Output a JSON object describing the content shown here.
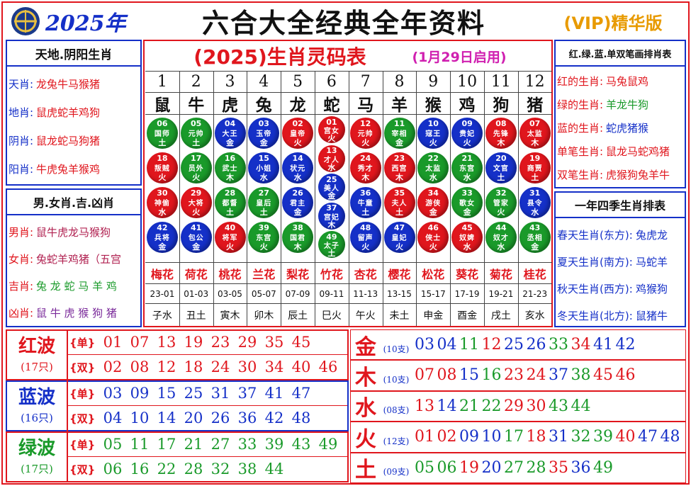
{
  "header": {
    "year": "2025年",
    "title": "六合大全经典全年资料",
    "badge": "(VIP)精华版"
  },
  "left_panels": [
    {
      "title": "天地.阴阳生肖",
      "rows": [
        {
          "label": "天肖:",
          "value": "龙兔牛马猴猪"
        },
        {
          "label": "地肖:",
          "value": "鼠虎蛇羊鸡狗"
        },
        {
          "label": "阴肖:",
          "value": "鼠龙蛇马狗猪"
        },
        {
          "label": "阳肖:",
          "value": "牛虎兔羊猴鸡"
        }
      ]
    },
    {
      "title": "男.女肖.吉.凶肖",
      "rows": [
        {
          "label": "男肖:",
          "value": "鼠牛虎龙马猴狗"
        },
        {
          "label": "女肖:",
          "value": "兔蛇羊鸡猪（五宫"
        },
        {
          "label": "吉肖:",
          "value": "兔 龙 蛇 马 羊 鸡"
        },
        {
          "label": "凶肖:",
          "value": "鼠 牛 虎 猴 狗 猪"
        }
      ]
    }
  ],
  "table": {
    "title": "(2025)生肖灵码表",
    "subtitle": "(1月29日启用)",
    "columns": [
      {
        "index": "1",
        "zodiac": "鼠",
        "balls": [
          {
            "number": "06",
            "name": "国师",
            "element": "土"
          },
          {
            "number": "18",
            "name": "叛贼",
            "element": "火"
          },
          {
            "number": "30",
            "name": "神偷",
            "element": "水"
          },
          {
            "number": "42",
            "name": "兵将",
            "element": "金"
          }
        ],
        "flower": "梅花",
        "hours": "23-01",
        "branch": "子水"
      },
      {
        "index": "2",
        "zodiac": "牛",
        "balls": [
          {
            "number": "05",
            "name": "元帅",
            "element": "土"
          },
          {
            "number": "17",
            "name": "员外",
            "element": "火"
          },
          {
            "number": "29",
            "name": "大将",
            "element": "火"
          },
          {
            "number": "41",
            "name": "包公",
            "element": "金"
          }
        ],
        "flower": "荷花",
        "hours": "01-03",
        "branch": "丑土"
      },
      {
        "index": "3",
        "zodiac": "虎",
        "balls": [
          {
            "number": "04",
            "name": "大王",
            "element": "金"
          },
          {
            "number": "16",
            "name": "武士",
            "element": "木"
          },
          {
            "number": "28",
            "name": "都督",
            "element": "土"
          },
          {
            "number": "40",
            "name": "将军",
            "element": "火"
          }
        ],
        "flower": "桃花",
        "hours": "03-05",
        "branch": "寅木"
      },
      {
        "index": "4",
        "zodiac": "兔",
        "balls": [
          {
            "number": "03",
            "name": "玉帝",
            "element": "金"
          },
          {
            "number": "15",
            "name": "小姐",
            "element": "水"
          },
          {
            "number": "27",
            "name": "皇后",
            "element": "土"
          },
          {
            "number": "39",
            "name": "东宫",
            "element": "火"
          }
        ],
        "flower": "兰花",
        "hours": "05-07",
        "branch": "卯木"
      },
      {
        "index": "5",
        "zodiac": "龙",
        "balls": [
          {
            "number": "02",
            "name": "皇帝",
            "element": "火"
          },
          {
            "number": "14",
            "name": "状元",
            "element": "水"
          },
          {
            "number": "26",
            "name": "君主",
            "element": "金"
          },
          {
            "number": "38",
            "name": "国君",
            "element": "木"
          }
        ],
        "flower": "梨花",
        "hours": "07-09",
        "branch": "辰土"
      },
      {
        "index": "6",
        "zodiac": "蛇",
        "balls": [
          {
            "number": "01",
            "name": "宫女",
            "element": "火"
          },
          {
            "number": "13",
            "name": "才人",
            "element": "水"
          },
          {
            "number": "25",
            "name": "美人",
            "element": "金"
          },
          {
            "number": "37",
            "name": "宫妃",
            "element": "木"
          },
          {
            "number": "49",
            "name": "太子",
            "element": "土"
          }
        ],
        "flower": "竹花",
        "hours": "09-11",
        "branch": "巳火"
      },
      {
        "index": "7",
        "zodiac": "马",
        "balls": [
          {
            "number": "12",
            "name": "元帅",
            "element": "火"
          },
          {
            "number": "24",
            "name": "秀才",
            "element": "木"
          },
          {
            "number": "36",
            "name": "牛童",
            "element": "土"
          },
          {
            "number": "48",
            "name": "留声",
            "element": "火"
          }
        ],
        "flower": "杏花",
        "hours": "11-13",
        "branch": "午火"
      },
      {
        "index": "8",
        "zodiac": "羊",
        "balls": [
          {
            "number": "11",
            "name": "宰相",
            "element": "金"
          },
          {
            "number": "23",
            "name": "西宫",
            "element": "木"
          },
          {
            "number": "35",
            "name": "夫人",
            "element": "土"
          },
          {
            "number": "47",
            "name": "皇妃",
            "element": "火"
          }
        ],
        "flower": "樱花",
        "hours": "13-15",
        "branch": "未土"
      },
      {
        "index": "9",
        "zodiac": "猴",
        "balls": [
          {
            "number": "10",
            "name": "寇王",
            "element": "火"
          },
          {
            "number": "22",
            "name": "太监",
            "element": "水"
          },
          {
            "number": "34",
            "name": "游侠",
            "element": "金"
          },
          {
            "number": "46",
            "name": "侠士",
            "element": "火"
          }
        ],
        "flower": "松花",
        "hours": "15-17",
        "branch": "申金"
      },
      {
        "index": "10",
        "zodiac": "鸡",
        "balls": [
          {
            "number": "09",
            "name": "贵妃",
            "element": "火"
          },
          {
            "number": "21",
            "name": "东宫",
            "element": "水"
          },
          {
            "number": "33",
            "name": "歌女",
            "element": "金"
          },
          {
            "number": "45",
            "name": "奴婢",
            "element": "水"
          }
        ],
        "flower": "葵花",
        "hours": "17-19",
        "branch": "酉金"
      },
      {
        "index": "11",
        "zodiac": "狗",
        "balls": [
          {
            "number": "08",
            "name": "先锋",
            "element": "木"
          },
          {
            "number": "20",
            "name": "文官",
            "element": "土"
          },
          {
            "number": "32",
            "name": "管家",
            "element": "火"
          },
          {
            "number": "44",
            "name": "奴才",
            "element": "水"
          }
        ],
        "flower": "菊花",
        "hours": "19-21",
        "branch": "戌土"
      },
      {
        "index": "12",
        "zodiac": "猪",
        "balls": [
          {
            "number": "07",
            "name": "太监",
            "element": "木"
          },
          {
            "number": "19",
            "name": "商贾",
            "element": "土"
          },
          {
            "number": "31",
            "name": "县令",
            "element": "水"
          },
          {
            "number": "43",
            "name": "丞相",
            "element": "金"
          }
        ],
        "flower": "桂花",
        "hours": "21-23",
        "branch": "亥水"
      }
    ]
  },
  "right_panels": [
    {
      "title": "红.绿.蓝.单双笔画排肖表",
      "rows": [
        {
          "label": "红的生肖:",
          "value": "马兔鼠鸡"
        },
        {
          "label": "绿的生肖:",
          "value": "羊龙牛狗"
        },
        {
          "label": "蓝的生肖:",
          "value": "蛇虎猪猴"
        },
        {
          "label": "单笔生肖:",
          "value": "鼠龙马蛇鸡猪"
        },
        {
          "label": "双笔生肖:",
          "value": "虎猴狗兔羊牛"
        }
      ]
    },
    {
      "title": "一年四季生肖排表",
      "rows": [
        {
          "label": "春天生肖(东方):",
          "value": "兔虎龙"
        },
        {
          "label": "夏天生肖(南方):",
          "value": "马蛇羊"
        },
        {
          "label": "秋天生肖(西方):",
          "value": "鸡猴狗"
        },
        {
          "label": "冬天生肖(北方):",
          "value": "鼠猪牛"
        }
      ]
    }
  ],
  "waves": [
    {
      "name": "红波",
      "count": "(17只)",
      "color": "#e0161d",
      "rows": [
        {
          "kind": "{单}",
          "numbers": [
            "01",
            "07",
            "13",
            "19",
            "23",
            "29",
            "35",
            "45"
          ]
        },
        {
          "kind": "{双}",
          "numbers": [
            "02",
            "08",
            "12",
            "18",
            "24",
            "30",
            "34",
            "40",
            "46"
          ]
        }
      ]
    },
    {
      "name": "蓝波",
      "count": "(16只)",
      "color": "#1530c8",
      "rows": [
        {
          "kind": "{单}",
          "numbers": [
            "03",
            "09",
            "15",
            "25",
            "31",
            "37",
            "41",
            "47"
          ]
        },
        {
          "kind": "{双}",
          "numbers": [
            "04",
            "10",
            "14",
            "20",
            "26",
            "36",
            "42",
            "48"
          ]
        }
      ]
    },
    {
      "name": "绿波",
      "count": "(17只)",
      "color": "#1a9a2a",
      "rows": [
        {
          "kind": "{单}",
          "numbers": [
            "05",
            "11",
            "17",
            "21",
            "27",
            "33",
            "39",
            "43",
            "49"
          ]
        },
        {
          "kind": "{双}",
          "numbers": [
            "06",
            "16",
            "22",
            "28",
            "32",
            "38",
            "44"
          ]
        }
      ]
    }
  ],
  "elements": [
    {
      "name": "金",
      "count": "(10支)",
      "numbers": [
        "03",
        "04",
        "11",
        "12",
        "25",
        "26",
        "33",
        "34",
        "41",
        "42"
      ]
    },
    {
      "name": "木",
      "count": "(10支)",
      "numbers": [
        "07",
        "08",
        "15",
        "16",
        "23",
        "24",
        "37",
        "38",
        "45",
        "46"
      ]
    },
    {
      "name": "水",
      "count": "(08支)",
      "numbers": [
        "13",
        "14",
        "21",
        "22",
        "29",
        "30",
        "43",
        "44"
      ]
    },
    {
      "name": "火",
      "count": "(12支)",
      "numbers": [
        "01",
        "02",
        "09",
        "10",
        "17",
        "18",
        "31",
        "32",
        "39",
        "40",
        "47",
        "48"
      ]
    },
    {
      "name": "土",
      "count": "(09支)",
      "numbers": [
        "05",
        "06",
        "19",
        "20",
        "27",
        "28",
        "35",
        "36",
        "49"
      ]
    }
  ]
}
